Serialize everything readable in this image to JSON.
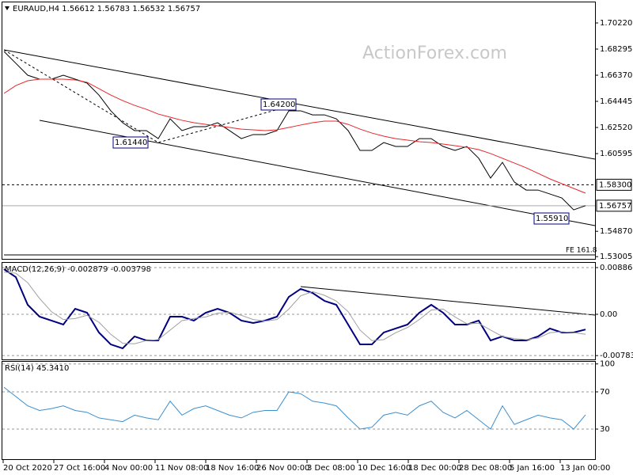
{
  "chart_data": [
    {
      "type": "line",
      "title": "EURAUD,H4 1.56612 1.56783 1.56532 1.56757",
      "watermark": "ActionForex.com",
      "series": [
        {
          "color": "#000000",
          "values": [
            1.6812,
            1.6725,
            1.6637,
            1.6608,
            1.6608,
            1.6637,
            1.6608,
            1.6579,
            1.6491,
            1.6375,
            1.6287,
            1.6229,
            1.6229,
            1.617,
            1.6316,
            1.6229,
            1.6258,
            1.6258,
            1.6287,
            1.6229,
            1.617,
            1.62,
            1.62,
            1.6229,
            1.6375,
            1.6375,
            1.6345,
            1.6345,
            1.6316,
            1.6229,
            1.6083,
            1.6083,
            1.6141,
            1.6112,
            1.6112,
            1.617,
            1.617,
            1.6112,
            1.6083,
            1.6112,
            1.6025,
            1.5879,
            1.5995,
            1.585,
            1.5791,
            1.5791,
            1.5762,
            1.5733,
            1.5645,
            1.5676
          ]
        },
        {
          "color": "#e8262a",
          "values": [
            1.6503,
            1.6561,
            1.6596,
            1.6608,
            1.6608,
            1.6608,
            1.6602,
            1.6585,
            1.6538,
            1.6491,
            1.645,
            1.6415,
            1.6386,
            1.6351,
            1.6328,
            1.6305,
            1.6287,
            1.6275,
            1.6264,
            1.6252,
            1.624,
            1.6235,
            1.6229,
            1.6235,
            1.6252,
            1.627,
            1.6287,
            1.6299,
            1.6299,
            1.6275,
            1.624,
            1.6211,
            1.6188,
            1.617,
            1.6159,
            1.6147,
            1.6141,
            1.613,
            1.6118,
            1.6106,
            1.6089,
            1.606,
            1.6025,
            1.599,
            1.5955,
            1.5914,
            1.5873,
            1.5838,
            1.5803,
            1.5768
          ]
        }
      ],
      "ylim": [
        1.5284,
        1.7162
      ],
      "yticks": [
        {
          "value": 1.7022,
          "label": "1.70220"
        },
        {
          "value": 1.68295,
          "label": "1.68295"
        },
        {
          "value": 1.6637,
          "label": "1.66370"
        },
        {
          "value": 1.64445,
          "label": "1.64445"
        },
        {
          "value": 1.6252,
          "label": "1.62520"
        },
        {
          "value": 1.60595,
          "label": "1.60595"
        },
        {
          "value": 1.5487,
          "label": "1.54870"
        },
        {
          "value": 1.53005,
          "label": "1.53005"
        }
      ],
      "levels": [
        {
          "value": 1.583,
          "label": "1.58300",
          "dashed": true
        },
        {
          "value": 1.56757,
          "label": "1.56757",
          "dashed": false
        }
      ],
      "annotations": [
        "1.64200",
        "1.61440",
        "1.55910",
        "FE 161.8"
      ],
      "time_labels": [
        "20 Oct 2020",
        "27 Oct 16:00",
        "4 Nov 00:00",
        "11 Nov 08:00",
        "18 Nov 16:00",
        "26 Nov 00:00",
        "3 Dec 08:00",
        "10 Dec 16:00",
        "18 Dec 00:00",
        "28 Dec 08:00",
        "5 Jan 16:00",
        "13 Jan 00:00"
      ]
    },
    {
      "type": "line",
      "title": "MACD(12,26,9) -0.002879 -0.003798",
      "series": [
        {
          "color": "#000080",
          "values": [
            0.00856,
            0.00706,
            0.0018,
            -0.00045,
            -0.0012,
            -0.00195,
            0.00105,
            0.0003,
            -0.00345,
            -0.00571,
            -0.00646,
            -0.0042,
            -0.00496,
            -0.00496,
            -0.00045,
            -0.00045,
            -0.0012,
            0.0003,
            0.00105,
            0.0003,
            -0.0012,
            -0.00165,
            -0.0012,
            -0.00045,
            0.0033,
            0.00481,
            0.00405,
            0.00255,
            0.0018,
            -0.00195,
            -0.00571,
            -0.00571,
            -0.00345,
            -0.0027,
            -0.00195,
            0.0003,
            0.0018,
            0.0003,
            -0.00195,
            -0.00195,
            -0.0012,
            -0.00496,
            -0.0042,
            -0.00496,
            -0.00496,
            -0.0042,
            -0.0027,
            -0.00345,
            -0.00345,
            -0.00288
          ]
        },
        {
          "color": "#a0a0a0",
          "values": [
            0.008,
            0.0078,
            0.006,
            0.003,
            0.0005,
            -0.001,
            -0.0008,
            -0.0002,
            -0.0015,
            -0.0038,
            -0.0055,
            -0.0056,
            -0.005,
            -0.0048,
            -0.003,
            -0.0012,
            -0.0008,
            -0.0005,
            0.0002,
            0.0004,
            -0.0002,
            -0.001,
            -0.0013,
            -0.001,
            0.001,
            0.0035,
            0.0043,
            0.0036,
            0.0025,
            0.0005,
            -0.003,
            -0.005,
            -0.0048,
            -0.0035,
            -0.0025,
            -0.001,
            0.0008,
            0.001,
            -0.0005,
            -0.0018,
            -0.0017,
            -0.003,
            -0.0042,
            -0.0046,
            -0.0048,
            -0.0045,
            -0.0035,
            -0.0033,
            -0.0035,
            -0.0038
          ]
        }
      ],
      "ylim": [
        -0.00841,
        0.00961
      ],
      "yticks": [
        {
          "value": 0.00886,
          "label": "0.00886"
        },
        {
          "value": 0,
          "label": "0.00"
        },
        {
          "value": -0.007834,
          "label": "-0.007834"
        }
      ],
      "grid": true
    },
    {
      "type": "line",
      "title": "RSI(14) 45.3410",
      "series": [
        {
          "color": "#3a8fd0",
          "values": [
            75,
            65,
            55,
            50,
            52,
            55,
            50,
            48,
            42,
            40,
            38,
            45,
            42,
            40,
            60,
            45,
            52,
            55,
            50,
            45,
            42,
            48,
            50,
            50,
            70,
            68,
            60,
            58,
            55,
            42,
            30,
            32,
            45,
            48,
            45,
            55,
            60,
            48,
            42,
            50,
            40,
            30,
            55,
            35,
            40,
            45,
            42,
            40,
            30,
            45.341
          ]
        }
      ],
      "ylim": [
        -2.3,
        102.3
      ],
      "yticks": [
        100,
        70,
        30
      ],
      "grid": true
    }
  ]
}
